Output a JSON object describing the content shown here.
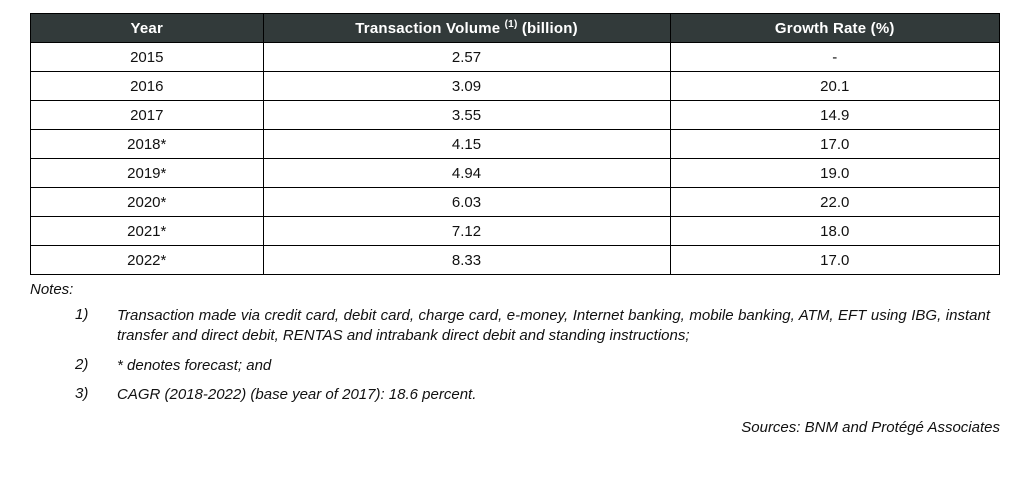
{
  "table": {
    "header_year": "Year",
    "header_volume": {
      "text": "Transaction Volume ",
      "sup": "(1)",
      "suffix": " (billion)"
    },
    "header_growth": "Growth Rate (%)",
    "rows": [
      {
        "year": "2015",
        "volume": "2.57",
        "growth": "-"
      },
      {
        "year": "2016",
        "volume": "3.09",
        "growth": "20.1"
      },
      {
        "year": "2017",
        "volume": "3.55",
        "growth": "14.9"
      },
      {
        "year": "2018*",
        "volume": "4.15",
        "growth": "17.0"
      },
      {
        "year": "2019*",
        "volume": "4.94",
        "growth": "19.0"
      },
      {
        "year": "2020*",
        "volume": "6.03",
        "growth": "22.0"
      },
      {
        "year": "2021*",
        "volume": "7.12",
        "growth": "18.0"
      },
      {
        "year": "2022*",
        "volume": "8.33",
        "growth": "17.0"
      }
    ]
  },
  "notes": {
    "title": "Notes:",
    "items": [
      {
        "num": "1)",
        "text": "Transaction made via credit card, debit card, charge card, e-money, Internet banking, mobile banking, ATM, EFT using IBG, instant transfer and direct debit, RENTAS and intrabank direct debit and standing instructions;"
      },
      {
        "num": "2)",
        "text": "* denotes forecast; and"
      },
      {
        "num": "3)",
        "text": "CAGR (2018-2022) (base year of 2017): 18.6 percent."
      }
    ]
  },
  "source": "Sources: BNM and Protégé Associates",
  "colors": {
    "header_bg": "#323a3a",
    "header_text": "#ffffff",
    "border": "#000000"
  }
}
